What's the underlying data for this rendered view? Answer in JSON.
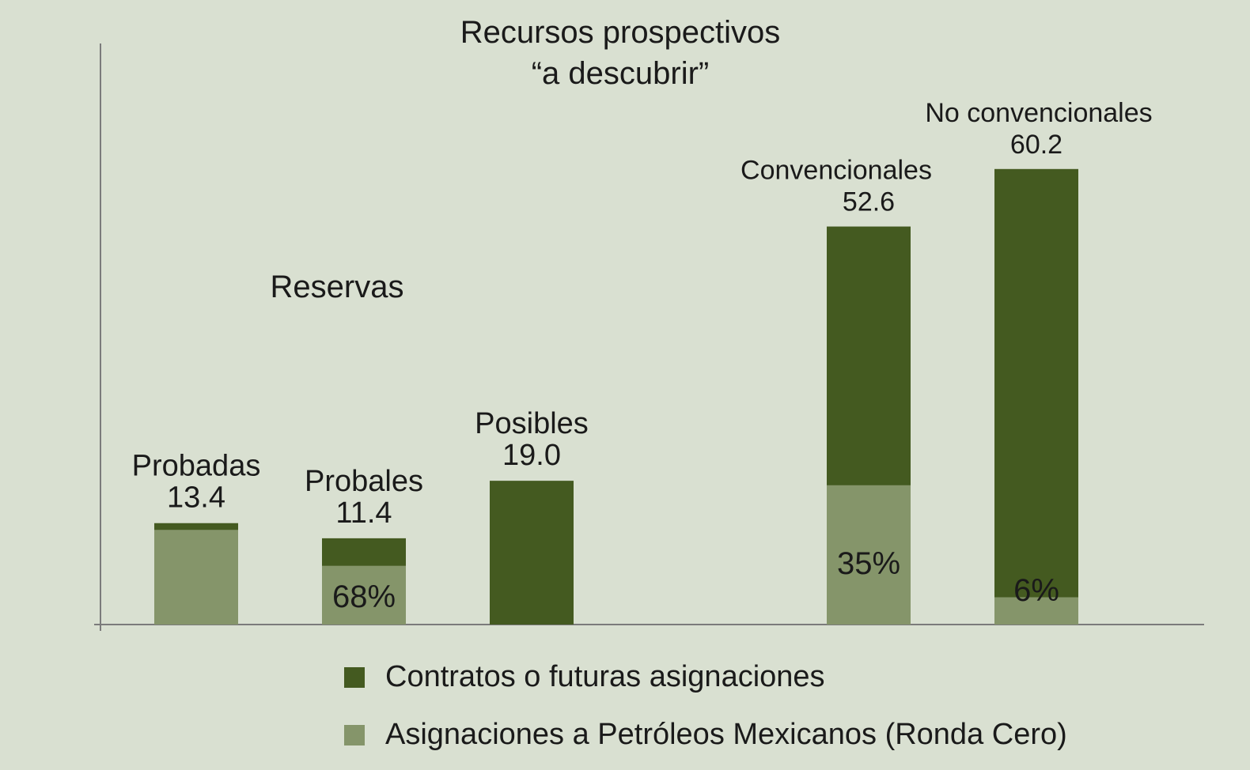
{
  "chart_data": {
    "type": "bar",
    "stacked": true,
    "group_labels": [
      "Reservas",
      "Recursos prospectivos “a descubrir”"
    ],
    "categories": [
      "Probadas",
      "Probales",
      "Posibles",
      "Convencionales",
      "No convencionales"
    ],
    "totals": [
      13.4,
      11.4,
      19.0,
      52.6,
      60.2
    ],
    "total_labels": [
      "13.4",
      "11.4",
      "19.0",
      "52.6",
      "60.2"
    ],
    "series": [
      {
        "name": "Asignaciones a Petróleos Mexicanos (Ronda Cero)",
        "color": "#85956a",
        "values": [
          12.5,
          7.75,
          0,
          18.4,
          3.6
        ]
      },
      {
        "name": "Contratos o futuras asignaciones",
        "color": "#445a20",
        "values": [
          0.9,
          3.65,
          19.0,
          34.2,
          56.6
        ]
      }
    ],
    "share_labels": [
      "",
      "68%",
      "",
      "35%",
      "6%"
    ],
    "ylim": [
      0,
      70
    ],
    "grid": false,
    "legend_position": "bottom"
  },
  "legend": {
    "items": [
      {
        "label": "Contratos o futuras asignaciones",
        "color": "#445a20"
      },
      {
        "label": "Asignaciones a Petróleos Mexicanos (Ronda Cero)",
        "color": "#85956a"
      }
    ]
  },
  "colors": {
    "background": "#d9e0d1",
    "axis": "#7b7b7b"
  }
}
